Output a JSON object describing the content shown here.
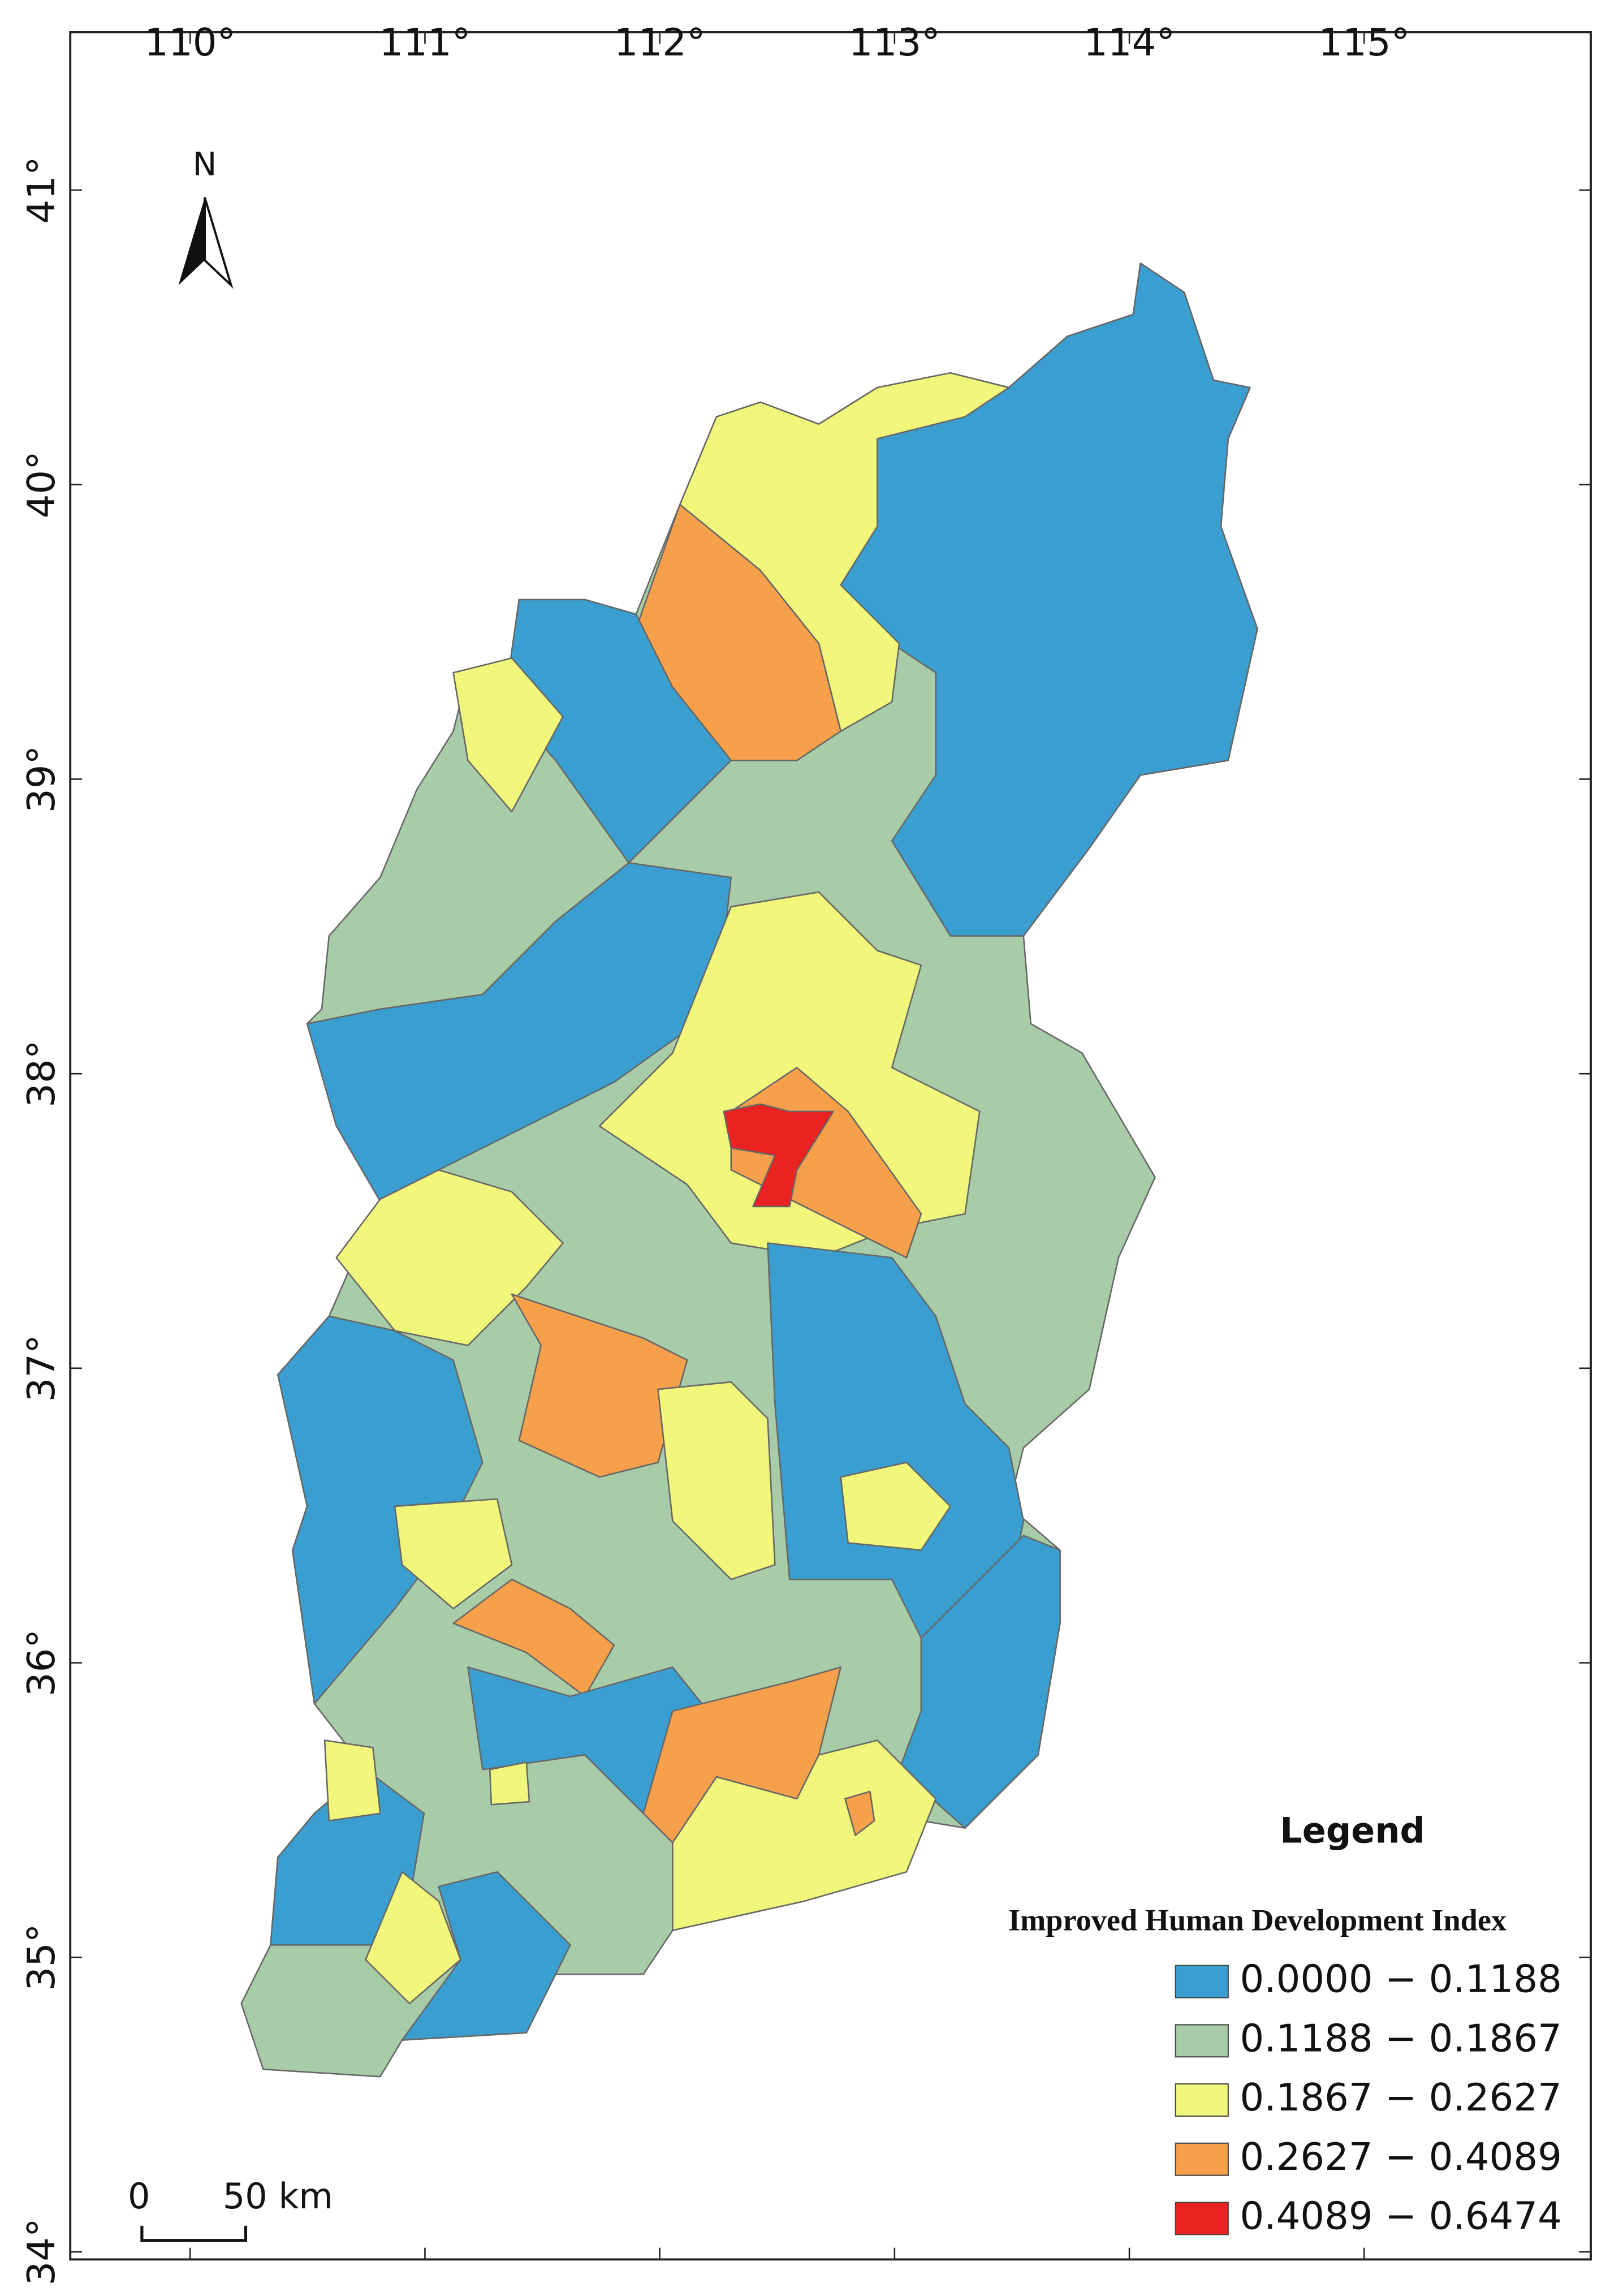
{
  "map": {
    "north_label": "N",
    "lon_ticks": [
      {
        "value": 110,
        "label": "110°"
      },
      {
        "value": 111,
        "label": "111°"
      },
      {
        "value": 112,
        "label": "112°"
      },
      {
        "value": 113,
        "label": "113°"
      },
      {
        "value": 114,
        "label": "114°"
      },
      {
        "value": 115,
        "label": "115°"
      }
    ],
    "lat_ticks": [
      {
        "value": 34,
        "label": "34°"
      },
      {
        "value": 35,
        "label": "35°"
      },
      {
        "value": 36,
        "label": "36°"
      },
      {
        "value": 37,
        "label": "37°"
      },
      {
        "value": 38,
        "label": "38°"
      },
      {
        "value": 39,
        "label": "39°"
      },
      {
        "value": 40,
        "label": "40°"
      },
      {
        "value": 41,
        "label": "41°"
      }
    ],
    "scale_bar": {
      "start_label": "0",
      "end_label": "50 km"
    },
    "legend": {
      "title": "Legend",
      "subtitle": "Improved Human Development Index",
      "classes": [
        {
          "label": "0.0000 − 0.1188",
          "color": "#3a9fd0"
        },
        {
          "label": "0.1188 − 0.1867",
          "color": "#a8cba8"
        },
        {
          "label": "0.1867 − 0.2627",
          "color": "#f0f77a"
        },
        {
          "label": "0.2627 − 0.4089",
          "color": "#f6a04b"
        },
        {
          "label": "0.4089 − 0.6474",
          "color": "#eb2222"
        }
      ]
    }
  }
}
